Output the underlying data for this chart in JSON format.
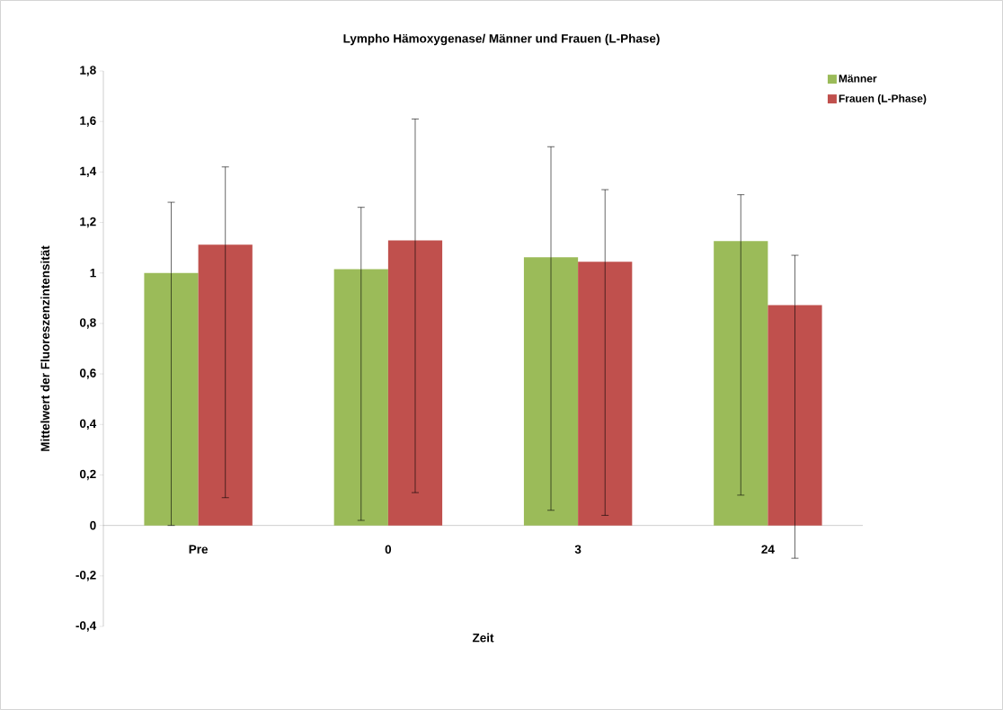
{
  "chart_data": {
    "type": "bar",
    "title": "Lympho Hämoxygenase/ Männer und Frauen (L-Phase)",
    "xlabel": "Zeit",
    "ylabel": "Mittelwert der Fluoreszenzintensität",
    "categories": [
      "Pre",
      "0",
      "3",
      "24"
    ],
    "series": [
      {
        "name": "Männer",
        "color": "#9bbb59",
        "values": [
          1.0,
          1.015,
          1.062,
          1.126
        ],
        "errors": [
          [
            0.0,
            1.28
          ],
          [
            0.02,
            1.26
          ],
          [
            0.06,
            1.5
          ],
          [
            0.12,
            1.31
          ]
        ]
      },
      {
        "name": "Frauen (L-Phase)",
        "color": "#c0504d",
        "values": [
          1.112,
          1.129,
          1.044,
          0.873
        ],
        "errors": [
          [
            0.11,
            1.42
          ],
          [
            0.13,
            1.61
          ],
          [
            0.04,
            1.33
          ],
          [
            -0.13,
            1.07
          ]
        ]
      }
    ],
    "ylim": [
      -0.4,
      1.8
    ],
    "yticks": [
      {
        "value": -0.4,
        "label": "-0,4"
      },
      {
        "value": -0.2,
        "label": "-0,2"
      },
      0,
      {
        "value": 0.2,
        "label": "0,2"
      },
      {
        "value": 0.4,
        "label": "0,4"
      },
      {
        "value": 0.6,
        "label": "0,6"
      },
      {
        "value": 0.8,
        "label": "0,8"
      },
      1,
      {
        "value": 1.2,
        "label": "1,2"
      },
      {
        "value": 1.4,
        "label": "1,4"
      },
      {
        "value": 1.6,
        "label": "1,6"
      },
      {
        "value": 1.8,
        "label": "1,8"
      }
    ],
    "legend": "top right"
  }
}
